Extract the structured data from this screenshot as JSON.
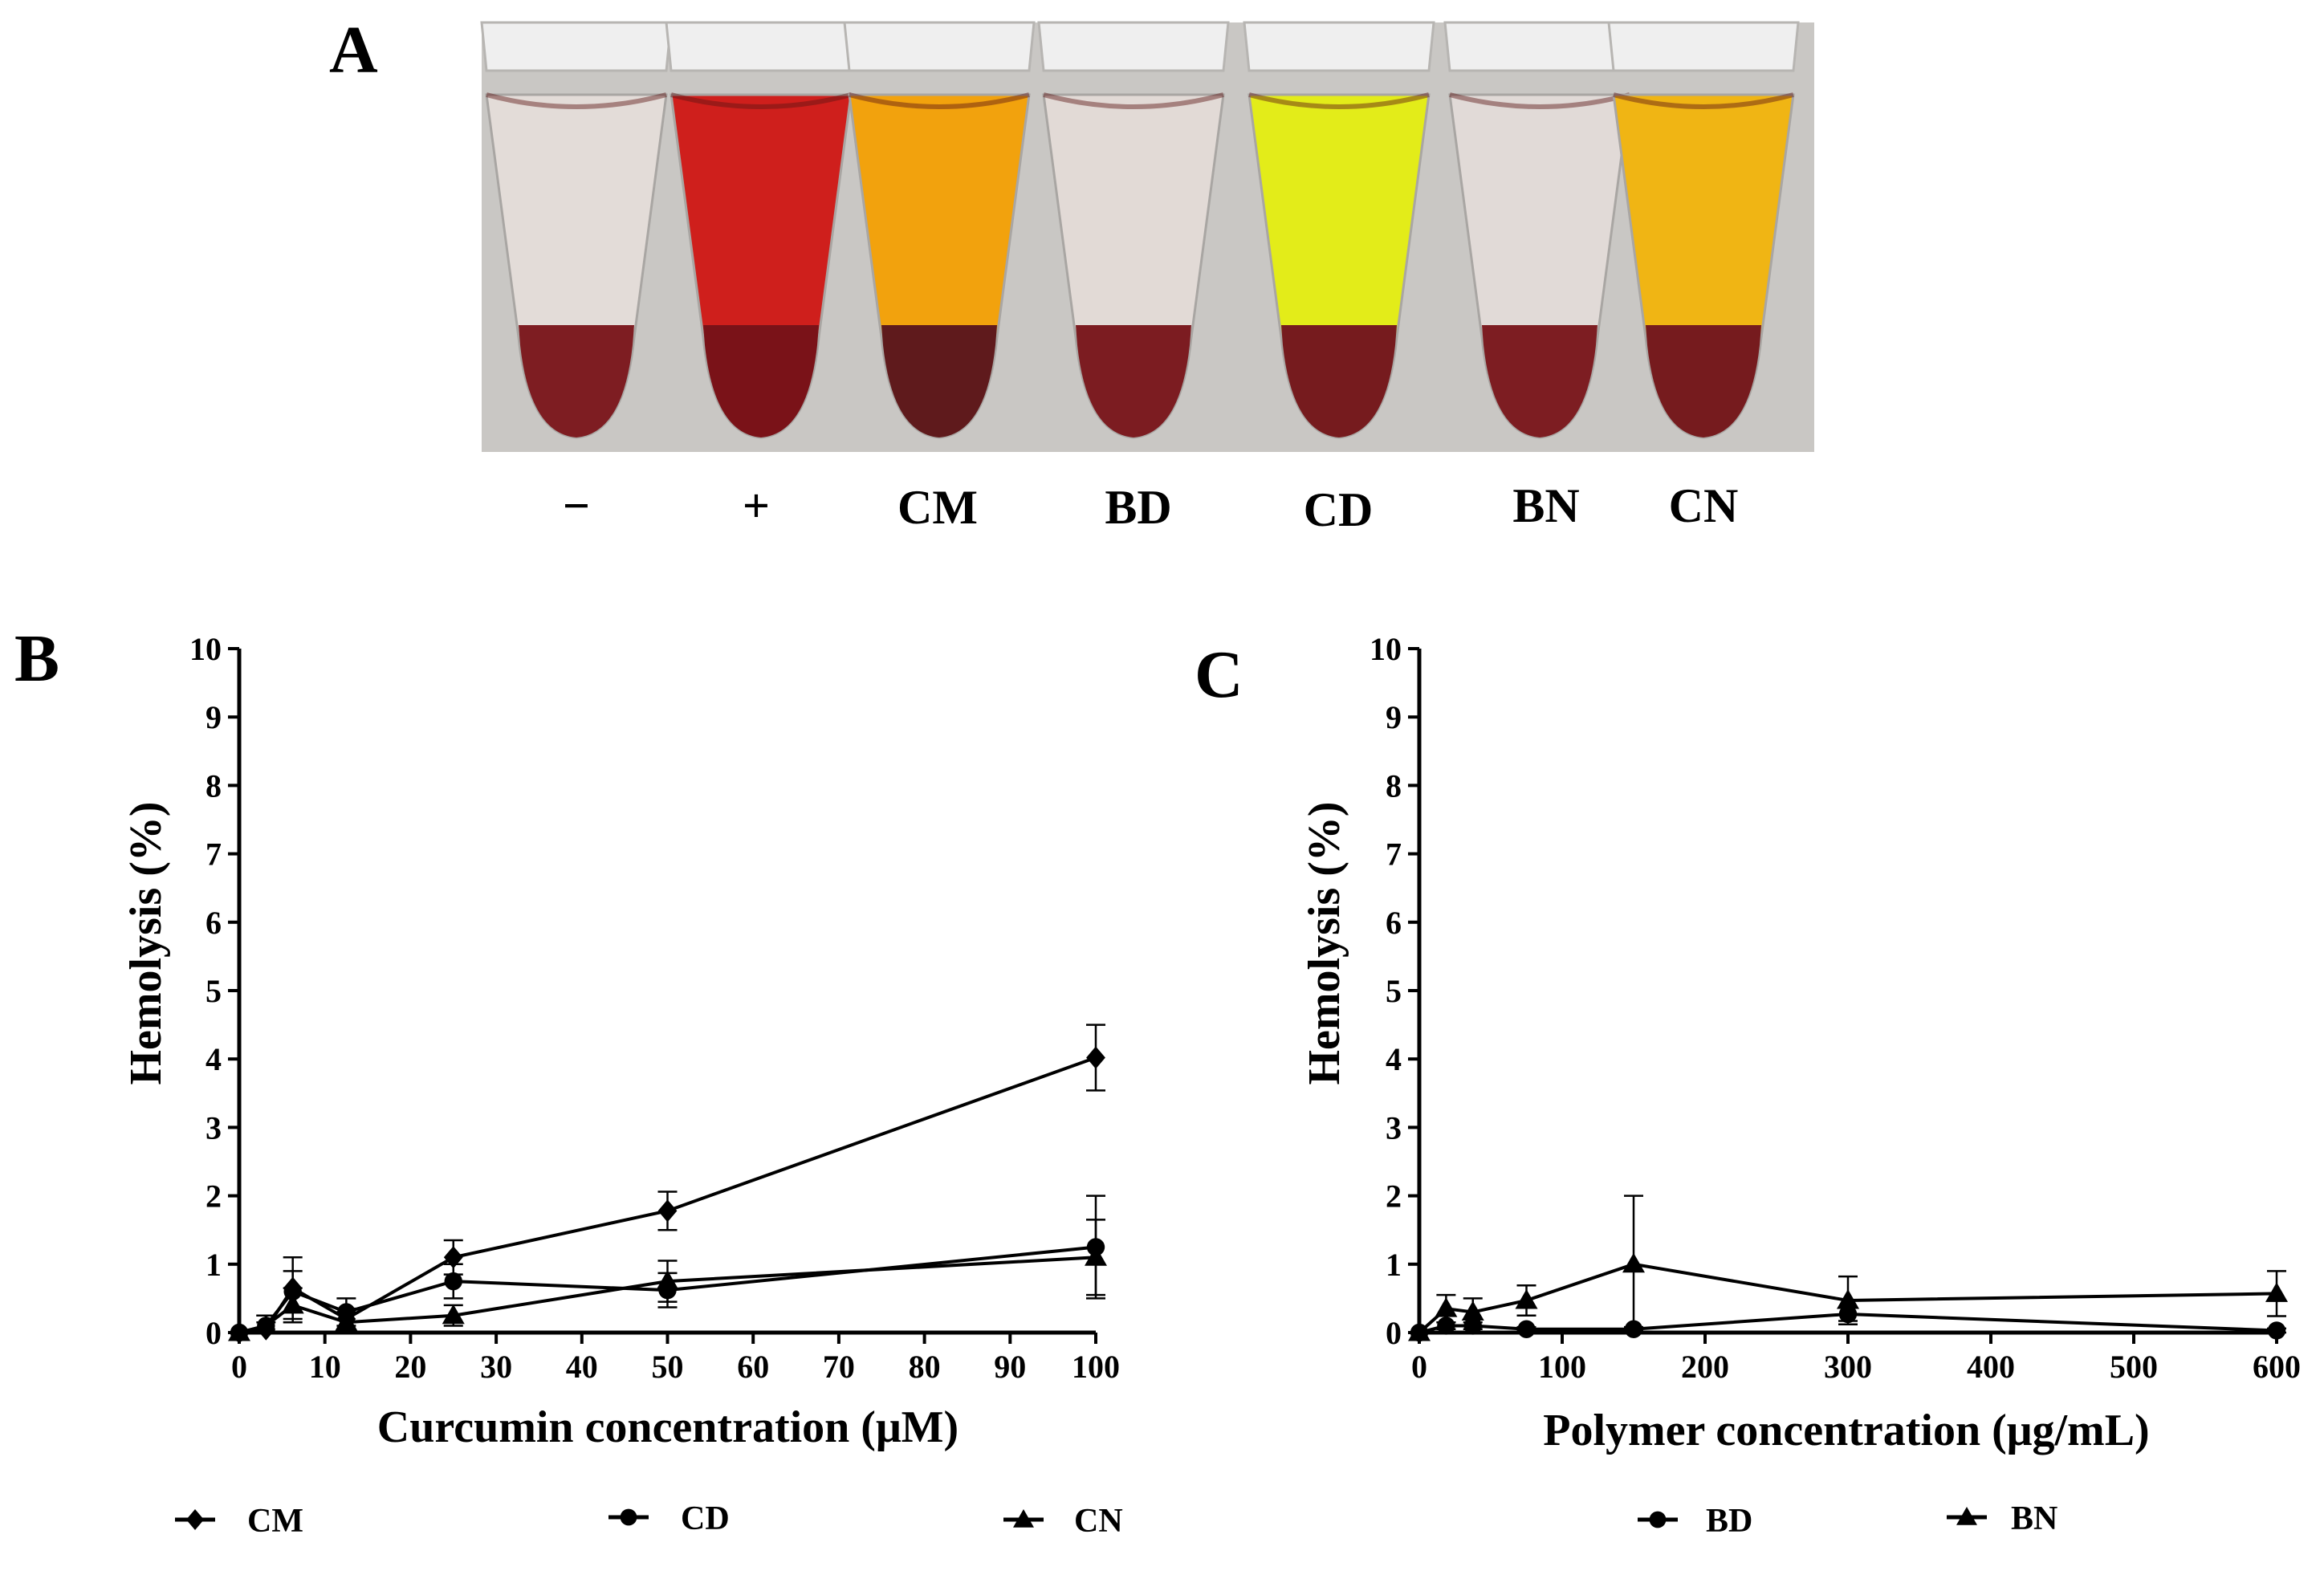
{
  "photo": {
    "panel_label": "A",
    "background_color": "#c9c7c4",
    "tubes": [
      {
        "label": "−",
        "fill_color": "#e3dcd8",
        "pellet_color": "#7e1d22"
      },
      {
        "label": "+",
        "fill_color": "#cf1f1c",
        "pellet_color": "#7a1218"
      },
      {
        "label": "CM",
        "fill_color": "#f2a20d",
        "pellet_color": "#5f1a1c"
      },
      {
        "label": "BD",
        "fill_color": "#e2dad6",
        "pellet_color": "#7c1c21"
      },
      {
        "label": "CD",
        "fill_color": "#e3ec19",
        "pellet_color": "#761b1e"
      },
      {
        "label": "BN",
        "fill_color": "#e1dad7",
        "pellet_color": "#7d1d22"
      },
      {
        "label": "CN",
        "fill_color": "#f0b514",
        "pellet_color": "#761b1e"
      }
    ]
  },
  "chart_data": [
    {
      "panel_label": "B",
      "type": "line",
      "xlabel": "Curcumin concentration (μM)",
      "ylabel": "Hemolysis (%)",
      "xlim": [
        0,
        100
      ],
      "ylim": [
        0,
        10
      ],
      "xticks": [
        0,
        10,
        20,
        30,
        40,
        50,
        60,
        70,
        80,
        90,
        100
      ],
      "yticks": [
        0,
        1,
        2,
        3,
        4,
        5,
        6,
        7,
        8,
        9,
        10
      ],
      "grid": false,
      "legend_position": "bottom",
      "series": [
        {
          "name": "CM",
          "marker": "diamond",
          "x": [
            0,
            3.125,
            6.25,
            12.5,
            25,
            50,
            100
          ],
          "y": [
            0,
            0.05,
            0.65,
            0.2,
            1.1,
            1.78,
            4.02
          ],
          "err": [
            0,
            0.1,
            0.45,
            0.15,
            0.25,
            0.28,
            0.48
          ]
        },
        {
          "name": "CD",
          "marker": "circle",
          "x": [
            0,
            3.125,
            6.25,
            12.5,
            25,
            50,
            100
          ],
          "y": [
            0,
            0.1,
            0.6,
            0.3,
            0.75,
            0.62,
            1.25
          ],
          "err": [
            0,
            0.15,
            0.3,
            0.2,
            0.25,
            0.25,
            0.75
          ]
        },
        {
          "name": "CN",
          "marker": "triangle",
          "x": [
            0,
            3.125,
            6.25,
            12.5,
            25,
            50,
            100
          ],
          "y": [
            0,
            0.1,
            0.4,
            0.15,
            0.25,
            0.75,
            1.1
          ],
          "err": [
            0,
            0.15,
            0.25,
            0.15,
            0.15,
            0.3,
            0.55
          ]
        }
      ]
    },
    {
      "panel_label": "C",
      "type": "line",
      "xlabel": "Polymer concentration (μg/mL)",
      "ylabel": "Hemolysis (%)",
      "xlim": [
        0,
        600
      ],
      "ylim": [
        0,
        10
      ],
      "xticks": [
        0,
        100,
        200,
        300,
        400,
        500,
        600
      ],
      "yticks": [
        0,
        1,
        2,
        3,
        4,
        5,
        6,
        7,
        8,
        9,
        10
      ],
      "grid": false,
      "legend_position": "bottom",
      "series": [
        {
          "name": "BD",
          "marker": "circle",
          "x": [
            0,
            18.75,
            37.5,
            75,
            150,
            300,
            600
          ],
          "y": [
            0,
            0.1,
            0.1,
            0.05,
            0.05,
            0.27,
            0.03
          ],
          "err": [
            0,
            0.05,
            0.05,
            0.03,
            0.03,
            0.1,
            0.03
          ]
        },
        {
          "name": "BN",
          "marker": "triangle",
          "x": [
            0,
            18.75,
            37.5,
            75,
            150,
            300,
            600
          ],
          "y": [
            0,
            0.35,
            0.3,
            0.47,
            1.0,
            0.47,
            0.57
          ],
          "err": [
            0,
            0.2,
            0.2,
            0.22,
            1.0,
            0.35,
            0.33
          ]
        }
      ]
    }
  ]
}
